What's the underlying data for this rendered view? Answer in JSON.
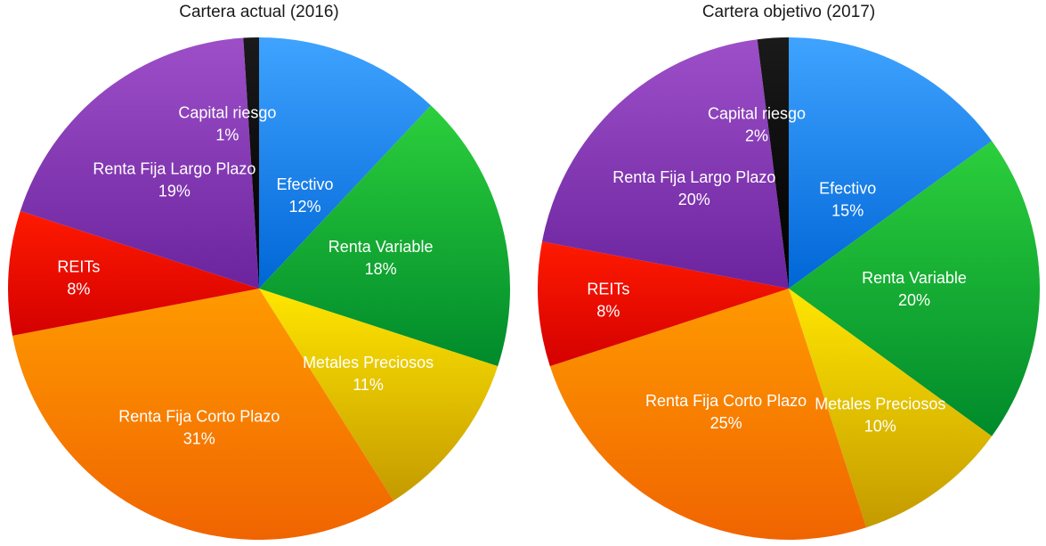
{
  "chart_data": [
    {
      "type": "pie",
      "title": "Cartera actual (2016)",
      "slices": [
        {
          "label": "Efectivo",
          "value": 12,
          "value_label": "12%",
          "color_top": "#3fa3ff",
          "color_bottom": "#0066d6"
        },
        {
          "label": "Renta Variable",
          "value": 18,
          "value_label": "18%",
          "color_top": "#2ccf3c",
          "color_bottom": "#008a2b"
        },
        {
          "label": "Metales Preciosos",
          "value": 11,
          "value_label": "11%",
          "color_top": "#ffe600",
          "color_bottom": "#c49a00"
        },
        {
          "label": "Renta Fija Corto Plazo",
          "value": 31,
          "value_label": "31%",
          "color_top": "#ff9a00",
          "color_bottom": "#f06400"
        },
        {
          "label": "REITs",
          "value": 8,
          "value_label": "8%",
          "color_top": "#ff1a00",
          "color_bottom": "#d40000"
        },
        {
          "label": "Renta Fija Largo Plazo",
          "value": 19,
          "value_label": "19%",
          "color_top": "#9d4fc8",
          "color_bottom": "#6b249e"
        },
        {
          "label": "Capital riesgo",
          "value": 1,
          "value_label": "1%",
          "color_top": "#1a1a1a",
          "color_bottom": "#000000"
        }
      ]
    },
    {
      "type": "pie",
      "title": "Cartera objetivo (2017)",
      "slices": [
        {
          "label": "Efectivo",
          "value": 15,
          "value_label": "15%",
          "color_top": "#3fa3ff",
          "color_bottom": "#0066d6"
        },
        {
          "label": "Renta Variable",
          "value": 20,
          "value_label": "20%",
          "color_top": "#2ccf3c",
          "color_bottom": "#008a2b"
        },
        {
          "label": "Metales Preciosos",
          "value": 10,
          "value_label": "10%",
          "color_top": "#ffe600",
          "color_bottom": "#c49a00"
        },
        {
          "label": "Renta Fija Corto Plazo",
          "value": 25,
          "value_label": "25%",
          "color_top": "#ff9a00",
          "color_bottom": "#f06400"
        },
        {
          "label": "REITs",
          "value": 8,
          "value_label": "8%",
          "color_top": "#ff1a00",
          "color_bottom": "#d40000"
        },
        {
          "label": "Renta Fija Largo Plazo",
          "value": 20,
          "value_label": "20%",
          "color_top": "#9d4fc8",
          "color_bottom": "#6b249e"
        },
        {
          "label": "Capital riesgo",
          "value": 2,
          "value_label": "2%",
          "color_top": "#1a1a1a",
          "color_bottom": "#000000"
        }
      ]
    }
  ]
}
